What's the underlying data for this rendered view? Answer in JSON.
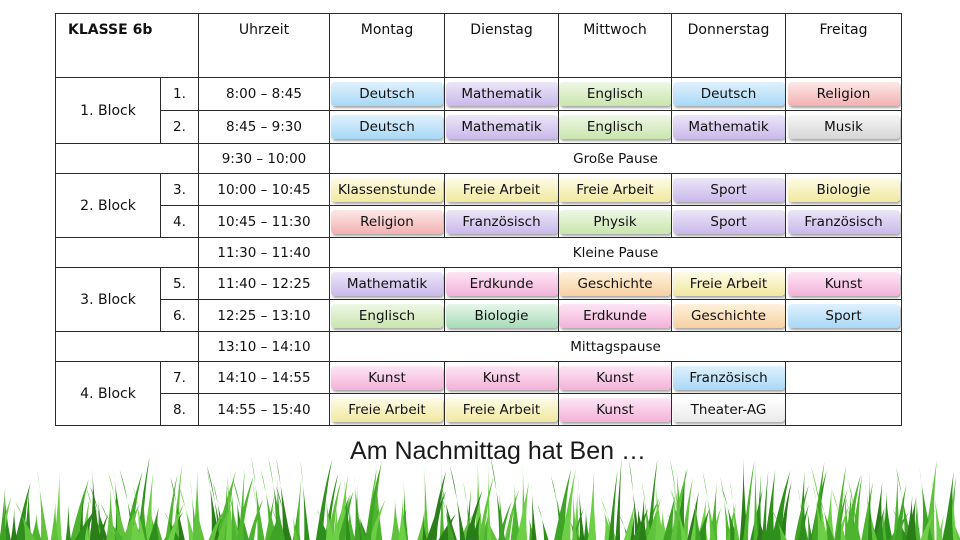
{
  "table": {
    "header": {
      "class": "KLASSE 6b",
      "time": "Uhrzeit",
      "days": [
        "Montag",
        "Dienstag",
        "Mittwoch",
        "Donnerstag",
        "Freitag"
      ]
    },
    "blocks": [
      {
        "label": "1. Block",
        "rows": [
          {
            "num": "1.",
            "time": "8:00 – 8:45",
            "subjects": [
              "Deutsch",
              "Mathematik",
              "Englisch",
              "Deutsch",
              "Religion"
            ]
          },
          {
            "num": "2.",
            "time": "8:45 – 9:30",
            "subjects": [
              "Deutsch",
              "Mathematik",
              "Englisch",
              "Mathematik",
              "Musik"
            ]
          }
        ],
        "pause": {
          "time": "9:30 – 10:00",
          "label": "Große Pause"
        }
      },
      {
        "label": "2. Block",
        "rows": [
          {
            "num": "3.",
            "time": "10:00 – 10:45",
            "subjects": [
              "Klassenstunde",
              "Freie Arbeit",
              "Freie Arbeit",
              "Sport",
              "Biologie"
            ]
          },
          {
            "num": "4.",
            "time": "10:45 – 11:30",
            "subjects": [
              "Religion",
              "Französisch",
              "Physik",
              "Sport",
              "Französisch"
            ]
          }
        ],
        "pause": {
          "time": "11:30 – 11:40",
          "label": "Kleine Pause"
        }
      },
      {
        "label": "3. Block",
        "rows": [
          {
            "num": "5.",
            "time": "11:40 – 12:25",
            "subjects": [
              "Mathematik",
              "Erdkunde",
              "Geschichte",
              "Freie Arbeit",
              "Kunst"
            ]
          },
          {
            "num": "6.",
            "time": "12:25 – 13:10",
            "subjects": [
              "Englisch",
              "Biologie",
              "Erdkunde",
              "Geschichte",
              "Sport"
            ]
          }
        ],
        "pause": {
          "time": "13:10 – 14:10",
          "label": "Mittagspause"
        }
      },
      {
        "label": "4. Block",
        "rows": [
          {
            "num": "7.",
            "time": "14:10 – 14:55",
            "subjects": [
              "Kunst",
              "Kunst",
              "Kunst",
              "Französisch",
              ""
            ]
          },
          {
            "num": "8.",
            "time": "14:55 – 15:40",
            "subjects": [
              "Freie Arbeit",
              "Freie Arbeit",
              "Kunst",
              "Theater-AG",
              ""
            ]
          }
        ]
      }
    ]
  },
  "subject_colors": {
    "Deutsch": "blue",
    "Mathematik": "purple",
    "Englisch": "green",
    "Religion": "red",
    "Musik": "gray",
    "Klassenstunde": "yellow",
    "Freie Arbeit": "yellow",
    "Sport": "purple",
    "Biologie": "yellow",
    "Französisch": "purple",
    "Physik": "green",
    "Erdkunde": "pink",
    "Geschichte": "orange",
    "Kunst": "pink",
    "Theater-AG": "white"
  },
  "caption": "Am Nachmittag hat Ben …"
}
